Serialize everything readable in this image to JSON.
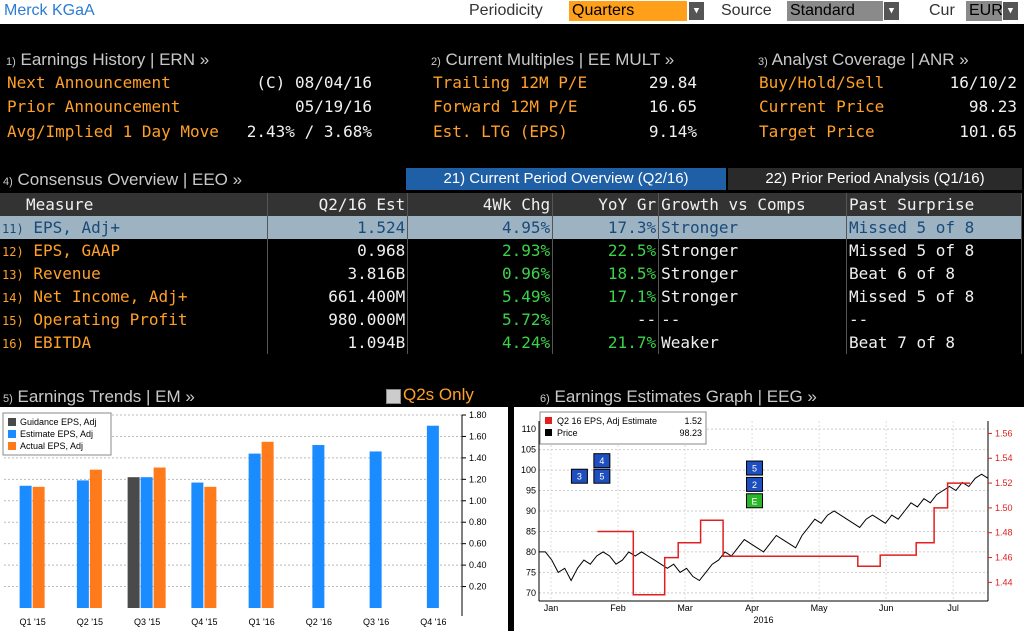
{
  "header": {
    "company": "Merck KGaA",
    "periodicity_label": "Periodicity",
    "periodicity_value": "Quarters",
    "source_label": "Source",
    "source_value": "Standard",
    "cur_label": "Cur",
    "cur_value": "EUR"
  },
  "ern": {
    "num": "1)",
    "title": "Earnings History | ERN »",
    "rows": [
      {
        "label": "Next Announcement",
        "value": "(C)  08/04/16"
      },
      {
        "label": "Prior Announcement",
        "value": "05/19/16"
      },
      {
        "label": "Avg/Implied 1 Day Move",
        "value": "2.43% / 3.68%"
      }
    ]
  },
  "eemult": {
    "num": "2)",
    "title": "Current Multiples | EE MULT »",
    "rows": [
      {
        "label": "Trailing 12M P/E",
        "value": "29.84"
      },
      {
        "label": "Forward 12M P/E",
        "value": "16.65"
      },
      {
        "label": "Est. LTG (EPS)",
        "value": "9.14%"
      }
    ]
  },
  "anr": {
    "num": "3)",
    "title": "Analyst Coverage | ANR »",
    "rows": [
      {
        "label": "Buy/Hold/Sell",
        "value": "16/10/2"
      },
      {
        "label": "Current Price",
        "value": "98.23"
      },
      {
        "label": "Target Price",
        "value": "101.65"
      }
    ]
  },
  "eeo": {
    "num": "4)",
    "title": "Consensus Overview | EEO »",
    "tab_current": "21) Current Period Overview (Q2/16)",
    "tab_prior": "22) Prior Period Analysis (Q1/16)",
    "headers": [
      "Measure",
      "Q2/16 Est",
      "4Wk Chg",
      "YoY Gr",
      "Growth vs Comps",
      "Past Surprise"
    ],
    "rows": [
      {
        "num": "11)",
        "measure": "EPS, Adj+",
        "est": "1.524",
        "chg": "4.95%",
        "yoy": "17.3%",
        "comps": "Stronger",
        "surprise": "Missed 5 of 8"
      },
      {
        "num": "12)",
        "measure": "EPS, GAAP",
        "est": "0.968",
        "chg": "2.93%",
        "yoy": "22.5%",
        "comps": "Stronger",
        "surprise": "Missed 5 of 8"
      },
      {
        "num": "13)",
        "measure": "Revenue",
        "est": "3.816B",
        "chg": "0.96%",
        "yoy": "18.5%",
        "comps": "Stronger",
        "surprise": "Beat 6 of 8"
      },
      {
        "num": "14)",
        "measure": "Net Income, Adj+",
        "est": "661.400M",
        "chg": "5.49%",
        "yoy": "17.1%",
        "comps": "Stronger",
        "surprise": "Missed 5 of 8"
      },
      {
        "num": "15)",
        "measure": "Operating Profit",
        "est": "980.000M",
        "chg": "5.72%",
        "yoy": "--",
        "comps": "--",
        "surprise": "--"
      },
      {
        "num": "16)",
        "measure": "EBITDA",
        "est": "1.094B",
        "chg": "4.24%",
        "yoy": "21.7%",
        "comps": "Weaker",
        "surprise": "Beat 7 of 8"
      }
    ]
  },
  "em": {
    "num": "5)",
    "title": "Earnings Trends | EM »",
    "q2s_label": "Q2s Only"
  },
  "eeg": {
    "num": "6)",
    "title": "Earnings Estimates Graph | EEG »"
  },
  "chart_data": [
    {
      "type": "bar",
      "legend": [
        "Guidance EPS, Adj",
        "Estimate EPS, Adj",
        "Actual EPS, Adj"
      ],
      "categories": [
        "Q1 '15",
        "Q2 '15",
        "Q3 '15",
        "Q4 '15",
        "Q1 '16",
        "Q2 '16",
        "Q3 '16",
        "Q4 '16"
      ],
      "series": [
        {
          "name": "Guidance EPS, Adj",
          "values": [
            null,
            null,
            1.22,
            null,
            null,
            null,
            null,
            null
          ]
        },
        {
          "name": "Estimate EPS, Adj",
          "values": [
            1.14,
            1.19,
            1.22,
            1.17,
            1.44,
            1.52,
            1.46,
            1.7
          ]
        },
        {
          "name": "Actual EPS, Adj",
          "values": [
            1.13,
            1.29,
            1.31,
            1.13,
            1.55,
            null,
            null,
            null
          ]
        }
      ],
      "ylim": [
        0,
        1.8
      ],
      "yticks": [
        "1.80",
        "1.60",
        "1.40",
        "1.20",
        "1.00",
        "0.80",
        "0.60",
        "0.40",
        "0.20"
      ],
      "colors": {
        "guidance": "#4a4a4a",
        "estimate": "#1a8cff",
        "actual": "#ff7a1a"
      }
    },
    {
      "type": "line",
      "legend": [
        {
          "label": "Q2 16 EPS, Adj Estimate",
          "value": "1.52",
          "color": "#e02020"
        },
        {
          "label": "Price",
          "value": "98.23",
          "color": "#000000"
        }
      ],
      "xlabels": [
        "Jan",
        "Feb",
        "Mar",
        "Apr",
        "May",
        "Jun",
        "Jul"
      ],
      "xyear": "2016",
      "left_axis": {
        "ticks": [
          "110",
          "105",
          "100",
          "95",
          "90",
          "85",
          "80",
          "75",
          "70"
        ],
        "ylim": [
          68,
          112
        ]
      },
      "right_axis": {
        "ticks": [
          "1.56",
          "1.54",
          "1.52",
          "1.50",
          "1.48",
          "1.46",
          "1.44"
        ],
        "ylim": [
          1.425,
          1.57
        ]
      },
      "price": [
        80,
        80,
        78,
        75,
        76,
        73,
        76,
        78,
        77,
        79,
        80,
        79,
        77,
        78,
        80,
        79,
        80,
        79,
        78,
        77,
        76,
        77,
        75,
        76,
        74,
        73,
        75,
        77,
        78,
        80,
        79,
        81,
        83,
        82,
        81,
        80,
        82,
        84,
        83,
        82,
        81,
        84,
        86,
        88,
        87,
        89,
        90,
        89,
        88,
        87,
        86,
        88,
        89,
        88,
        87,
        89,
        88,
        90,
        92,
        91,
        93,
        92,
        94,
        95,
        96,
        95,
        97,
        96,
        98,
        99,
        98
      ],
      "estimate_steps": [
        {
          "from": 0.13,
          "to": 0.21,
          "v": 1.481
        },
        {
          "from": 0.21,
          "to": 0.28,
          "v": 1.43
        },
        {
          "from": 0.28,
          "to": 0.31,
          "v": 1.46
        },
        {
          "from": 0.31,
          "to": 0.36,
          "v": 1.472
        },
        {
          "from": 0.36,
          "to": 0.41,
          "v": 1.49
        },
        {
          "from": 0.41,
          "to": 0.71,
          "v": 1.461
        },
        {
          "from": 0.71,
          "to": 0.76,
          "v": 1.453
        },
        {
          "from": 0.76,
          "to": 0.84,
          "v": 1.462
        },
        {
          "from": 0.84,
          "to": 0.88,
          "v": 1.472
        },
        {
          "from": 0.88,
          "to": 0.91,
          "v": 1.5
        },
        {
          "from": 0.91,
          "to": 0.96,
          "v": 1.52
        }
      ],
      "markers": [
        {
          "label": "3",
          "x": 0.09,
          "v": 98.5,
          "color": "#1e4fc0"
        },
        {
          "label": "4",
          "x": 0.14,
          "v": 102.3,
          "color": "#1e4fc0"
        },
        {
          "label": "5",
          "x": 0.14,
          "v": 98.5,
          "color": "#1e4fc0"
        },
        {
          "label": "5",
          "x": 0.48,
          "v": 100.5,
          "color": "#1e4fc0"
        },
        {
          "label": "2",
          "x": 0.48,
          "v": 96.5,
          "color": "#1e4fc0"
        },
        {
          "label": "E",
          "x": 0.48,
          "v": 92.5,
          "color": "#2ab52a"
        }
      ]
    }
  ]
}
